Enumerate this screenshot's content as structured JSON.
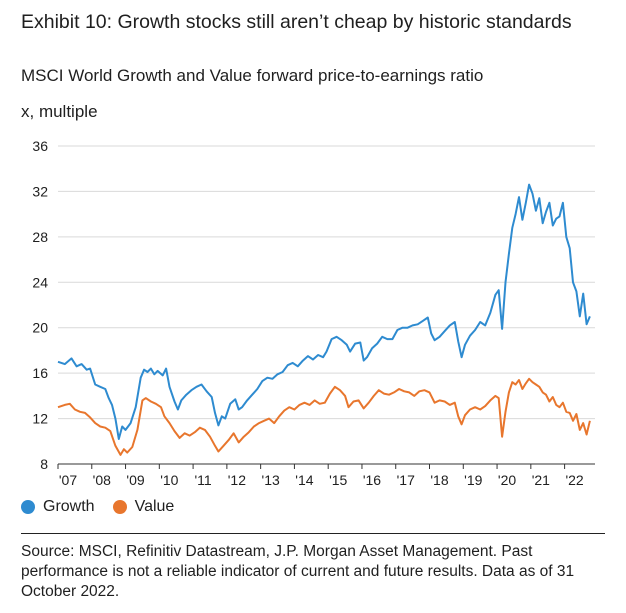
{
  "title": "Exhibit 10: Growth stocks still aren’t cheap by historic standards",
  "subtitle": "MSCI World Growth and Value forward price-to-earnings ratio",
  "ylabel": "x, multiple",
  "source": "Source: MSCI, Refinitiv Datastream, J.P. Morgan Asset Management. Past performance is not a reliable indicator of current and future results. Data as of 31 October 2022.",
  "colors": {
    "growth": "#2e8bd0",
    "value": "#e8762d",
    "grid": "#d9d9d9"
  },
  "chart_data": {
    "type": "line",
    "ylabel": "x, multiple",
    "ylim": [
      8,
      36
    ],
    "yticks": [
      8,
      12,
      16,
      20,
      24,
      28,
      32,
      36
    ],
    "xlim": [
      2007.0,
      2022.9
    ],
    "xticks": [
      {
        "v": 2007,
        "label": "'07"
      },
      {
        "v": 2008,
        "label": "'08"
      },
      {
        "v": 2009,
        "label": "'09"
      },
      {
        "v": 2010,
        "label": "'10"
      },
      {
        "v": 2011,
        "label": "'11"
      },
      {
        "v": 2012,
        "label": "'12"
      },
      {
        "v": 2013,
        "label": "'13"
      },
      {
        "v": 2014,
        "label": "'14"
      },
      {
        "v": 2015,
        "label": "'15"
      },
      {
        "v": 2016,
        "label": "'16"
      },
      {
        "v": 2017,
        "label": "'17"
      },
      {
        "v": 2018,
        "label": "'18"
      },
      {
        "v": 2019,
        "label": "'19"
      },
      {
        "v": 2020,
        "label": "'20"
      },
      {
        "v": 2021,
        "label": "'21"
      },
      {
        "v": 2022,
        "label": "'22"
      }
    ],
    "grid": "horizontal",
    "legend_position": "bottom-left",
    "series": [
      {
        "name": "Growth",
        "color": "#2e8bd0",
        "points": [
          [
            2007.0,
            17.0
          ],
          [
            2007.2,
            16.8
          ],
          [
            2007.4,
            17.3
          ],
          [
            2007.55,
            16.6
          ],
          [
            2007.7,
            16.8
          ],
          [
            2007.85,
            16.3
          ],
          [
            2007.95,
            16.4
          ],
          [
            2008.1,
            15.0
          ],
          [
            2008.25,
            14.8
          ],
          [
            2008.4,
            14.6
          ],
          [
            2008.5,
            13.8
          ],
          [
            2008.6,
            13.2
          ],
          [
            2008.7,
            12.0
          ],
          [
            2008.8,
            10.2
          ],
          [
            2008.9,
            11.3
          ],
          [
            2009.0,
            11.0
          ],
          [
            2009.15,
            11.6
          ],
          [
            2009.3,
            13.0
          ],
          [
            2009.45,
            15.6
          ],
          [
            2009.55,
            16.3
          ],
          [
            2009.65,
            16.1
          ],
          [
            2009.75,
            16.4
          ],
          [
            2009.85,
            15.9
          ],
          [
            2009.95,
            16.2
          ],
          [
            2010.1,
            15.8
          ],
          [
            2010.2,
            16.4
          ],
          [
            2010.3,
            14.8
          ],
          [
            2010.45,
            13.5
          ],
          [
            2010.55,
            12.8
          ],
          [
            2010.65,
            13.6
          ],
          [
            2010.8,
            14.1
          ],
          [
            2010.95,
            14.5
          ],
          [
            2011.1,
            14.8
          ],
          [
            2011.25,
            15.0
          ],
          [
            2011.4,
            14.4
          ],
          [
            2011.55,
            13.9
          ],
          [
            2011.65,
            12.5
          ],
          [
            2011.75,
            11.4
          ],
          [
            2011.85,
            12.2
          ],
          [
            2011.95,
            12.0
          ],
          [
            2012.1,
            13.3
          ],
          [
            2012.25,
            13.7
          ],
          [
            2012.35,
            12.8
          ],
          [
            2012.45,
            13.0
          ],
          [
            2012.6,
            13.6
          ],
          [
            2012.75,
            14.1
          ],
          [
            2012.9,
            14.6
          ],
          [
            2013.05,
            15.3
          ],
          [
            2013.2,
            15.6
          ],
          [
            2013.35,
            15.5
          ],
          [
            2013.5,
            15.9
          ],
          [
            2013.65,
            16.1
          ],
          [
            2013.8,
            16.7
          ],
          [
            2013.95,
            16.9
          ],
          [
            2014.1,
            16.6
          ],
          [
            2014.25,
            17.1
          ],
          [
            2014.4,
            17.5
          ],
          [
            2014.55,
            17.2
          ],
          [
            2014.7,
            17.6
          ],
          [
            2014.85,
            17.4
          ],
          [
            2014.95,
            17.9
          ],
          [
            2015.1,
            19.0
          ],
          [
            2015.25,
            19.2
          ],
          [
            2015.4,
            18.9
          ],
          [
            2015.55,
            18.5
          ],
          [
            2015.65,
            17.9
          ],
          [
            2015.8,
            18.6
          ],
          [
            2015.95,
            18.7
          ],
          [
            2016.05,
            17.1
          ],
          [
            2016.15,
            17.4
          ],
          [
            2016.3,
            18.2
          ],
          [
            2016.45,
            18.6
          ],
          [
            2016.6,
            19.2
          ],
          [
            2016.75,
            19.0
          ],
          [
            2016.9,
            19.0
          ],
          [
            2017.05,
            19.8
          ],
          [
            2017.2,
            20.0
          ],
          [
            2017.35,
            20.0
          ],
          [
            2017.5,
            20.2
          ],
          [
            2017.65,
            20.3
          ],
          [
            2017.8,
            20.6
          ],
          [
            2017.95,
            20.9
          ],
          [
            2018.05,
            19.5
          ],
          [
            2018.15,
            18.9
          ],
          [
            2018.3,
            19.2
          ],
          [
            2018.45,
            19.7
          ],
          [
            2018.6,
            20.2
          ],
          [
            2018.75,
            20.5
          ],
          [
            2018.85,
            18.8
          ],
          [
            2018.95,
            17.4
          ],
          [
            2019.05,
            18.5
          ],
          [
            2019.2,
            19.3
          ],
          [
            2019.35,
            19.8
          ],
          [
            2019.5,
            20.5
          ],
          [
            2019.65,
            20.2
          ],
          [
            2019.8,
            21.3
          ],
          [
            2019.95,
            22.9
          ],
          [
            2020.05,
            23.3
          ],
          [
            2020.15,
            19.9
          ],
          [
            2020.25,
            24.0
          ],
          [
            2020.35,
            26.5
          ],
          [
            2020.45,
            28.8
          ],
          [
            2020.55,
            30.0
          ],
          [
            2020.65,
            31.5
          ],
          [
            2020.75,
            29.5
          ],
          [
            2020.85,
            31.0
          ],
          [
            2020.95,
            32.6
          ],
          [
            2021.05,
            31.8
          ],
          [
            2021.15,
            30.3
          ],
          [
            2021.25,
            31.4
          ],
          [
            2021.35,
            29.2
          ],
          [
            2021.45,
            30.2
          ],
          [
            2021.55,
            31.0
          ],
          [
            2021.65,
            29.0
          ],
          [
            2021.75,
            29.6
          ],
          [
            2021.85,
            29.8
          ],
          [
            2021.95,
            31.0
          ],
          [
            2022.05,
            28.0
          ],
          [
            2022.15,
            27.0
          ],
          [
            2022.25,
            24.0
          ],
          [
            2022.35,
            23.2
          ],
          [
            2022.45,
            21.0
          ],
          [
            2022.55,
            23.0
          ],
          [
            2022.65,
            20.3
          ],
          [
            2022.75,
            21.0
          ]
        ]
      },
      {
        "name": "Value",
        "color": "#e8762d",
        "points": [
          [
            2007.0,
            13.0
          ],
          [
            2007.2,
            13.2
          ],
          [
            2007.35,
            13.3
          ],
          [
            2007.5,
            12.8
          ],
          [
            2007.65,
            12.6
          ],
          [
            2007.8,
            12.5
          ],
          [
            2007.95,
            12.1
          ],
          [
            2008.1,
            11.6
          ],
          [
            2008.25,
            11.3
          ],
          [
            2008.4,
            11.2
          ],
          [
            2008.55,
            10.9
          ],
          [
            2008.7,
            9.6
          ],
          [
            2008.85,
            8.8
          ],
          [
            2008.95,
            9.3
          ],
          [
            2009.05,
            9.0
          ],
          [
            2009.2,
            9.5
          ],
          [
            2009.35,
            11.0
          ],
          [
            2009.5,
            13.6
          ],
          [
            2009.6,
            13.8
          ],
          [
            2009.75,
            13.5
          ],
          [
            2009.9,
            13.3
          ],
          [
            2010.05,
            13.0
          ],
          [
            2010.15,
            12.2
          ],
          [
            2010.3,
            11.6
          ],
          [
            2010.45,
            10.9
          ],
          [
            2010.6,
            10.3
          ],
          [
            2010.75,
            10.7
          ],
          [
            2010.9,
            10.5
          ],
          [
            2011.05,
            10.8
          ],
          [
            2011.2,
            11.2
          ],
          [
            2011.35,
            11.0
          ],
          [
            2011.5,
            10.4
          ],
          [
            2011.65,
            9.6
          ],
          [
            2011.75,
            9.1
          ],
          [
            2011.9,
            9.6
          ],
          [
            2012.05,
            10.1
          ],
          [
            2012.2,
            10.7
          ],
          [
            2012.35,
            9.9
          ],
          [
            2012.5,
            10.4
          ],
          [
            2012.65,
            10.8
          ],
          [
            2012.8,
            11.3
          ],
          [
            2012.95,
            11.6
          ],
          [
            2013.1,
            11.8
          ],
          [
            2013.25,
            12.0
          ],
          [
            2013.4,
            11.6
          ],
          [
            2013.55,
            12.2
          ],
          [
            2013.7,
            12.7
          ],
          [
            2013.85,
            13.0
          ],
          [
            2014.0,
            12.8
          ],
          [
            2014.15,
            13.2
          ],
          [
            2014.3,
            13.4
          ],
          [
            2014.45,
            13.2
          ],
          [
            2014.6,
            13.6
          ],
          [
            2014.75,
            13.3
          ],
          [
            2014.9,
            13.4
          ],
          [
            2015.05,
            14.2
          ],
          [
            2015.2,
            14.8
          ],
          [
            2015.35,
            14.5
          ],
          [
            2015.5,
            14.0
          ],
          [
            2015.6,
            13.0
          ],
          [
            2015.75,
            13.5
          ],
          [
            2015.9,
            13.6
          ],
          [
            2016.05,
            12.9
          ],
          [
            2016.2,
            13.4
          ],
          [
            2016.35,
            14.0
          ],
          [
            2016.5,
            14.5
          ],
          [
            2016.65,
            14.2
          ],
          [
            2016.8,
            14.1
          ],
          [
            2016.95,
            14.3
          ],
          [
            2017.1,
            14.6
          ],
          [
            2017.25,
            14.4
          ],
          [
            2017.4,
            14.3
          ],
          [
            2017.55,
            14.0
          ],
          [
            2017.7,
            14.4
          ],
          [
            2017.85,
            14.5
          ],
          [
            2018.0,
            14.3
          ],
          [
            2018.15,
            13.4
          ],
          [
            2018.3,
            13.6
          ],
          [
            2018.45,
            13.5
          ],
          [
            2018.6,
            13.2
          ],
          [
            2018.75,
            13.4
          ],
          [
            2018.85,
            12.2
          ],
          [
            2018.95,
            11.5
          ],
          [
            2019.05,
            12.3
          ],
          [
            2019.2,
            12.8
          ],
          [
            2019.35,
            13.0
          ],
          [
            2019.5,
            12.8
          ],
          [
            2019.65,
            13.1
          ],
          [
            2019.8,
            13.6
          ],
          [
            2019.95,
            14.0
          ],
          [
            2020.05,
            13.8
          ],
          [
            2020.15,
            10.4
          ],
          [
            2020.25,
            12.6
          ],
          [
            2020.35,
            14.3
          ],
          [
            2020.45,
            15.2
          ],
          [
            2020.55,
            15.0
          ],
          [
            2020.65,
            15.4
          ],
          [
            2020.75,
            14.6
          ],
          [
            2020.85,
            15.1
          ],
          [
            2020.95,
            15.5
          ],
          [
            2021.05,
            15.2
          ],
          [
            2021.15,
            15.0
          ],
          [
            2021.25,
            14.8
          ],
          [
            2021.35,
            14.3
          ],
          [
            2021.45,
            14.1
          ],
          [
            2021.55,
            13.5
          ],
          [
            2021.65,
            13.9
          ],
          [
            2021.75,
            13.2
          ],
          [
            2021.85,
            13.0
          ],
          [
            2021.95,
            13.4
          ],
          [
            2022.05,
            12.6
          ],
          [
            2022.15,
            12.5
          ],
          [
            2022.25,
            11.8
          ],
          [
            2022.35,
            12.4
          ],
          [
            2022.45,
            11.0
          ],
          [
            2022.55,
            11.6
          ],
          [
            2022.65,
            10.6
          ],
          [
            2022.75,
            11.8
          ]
        ]
      }
    ]
  }
}
